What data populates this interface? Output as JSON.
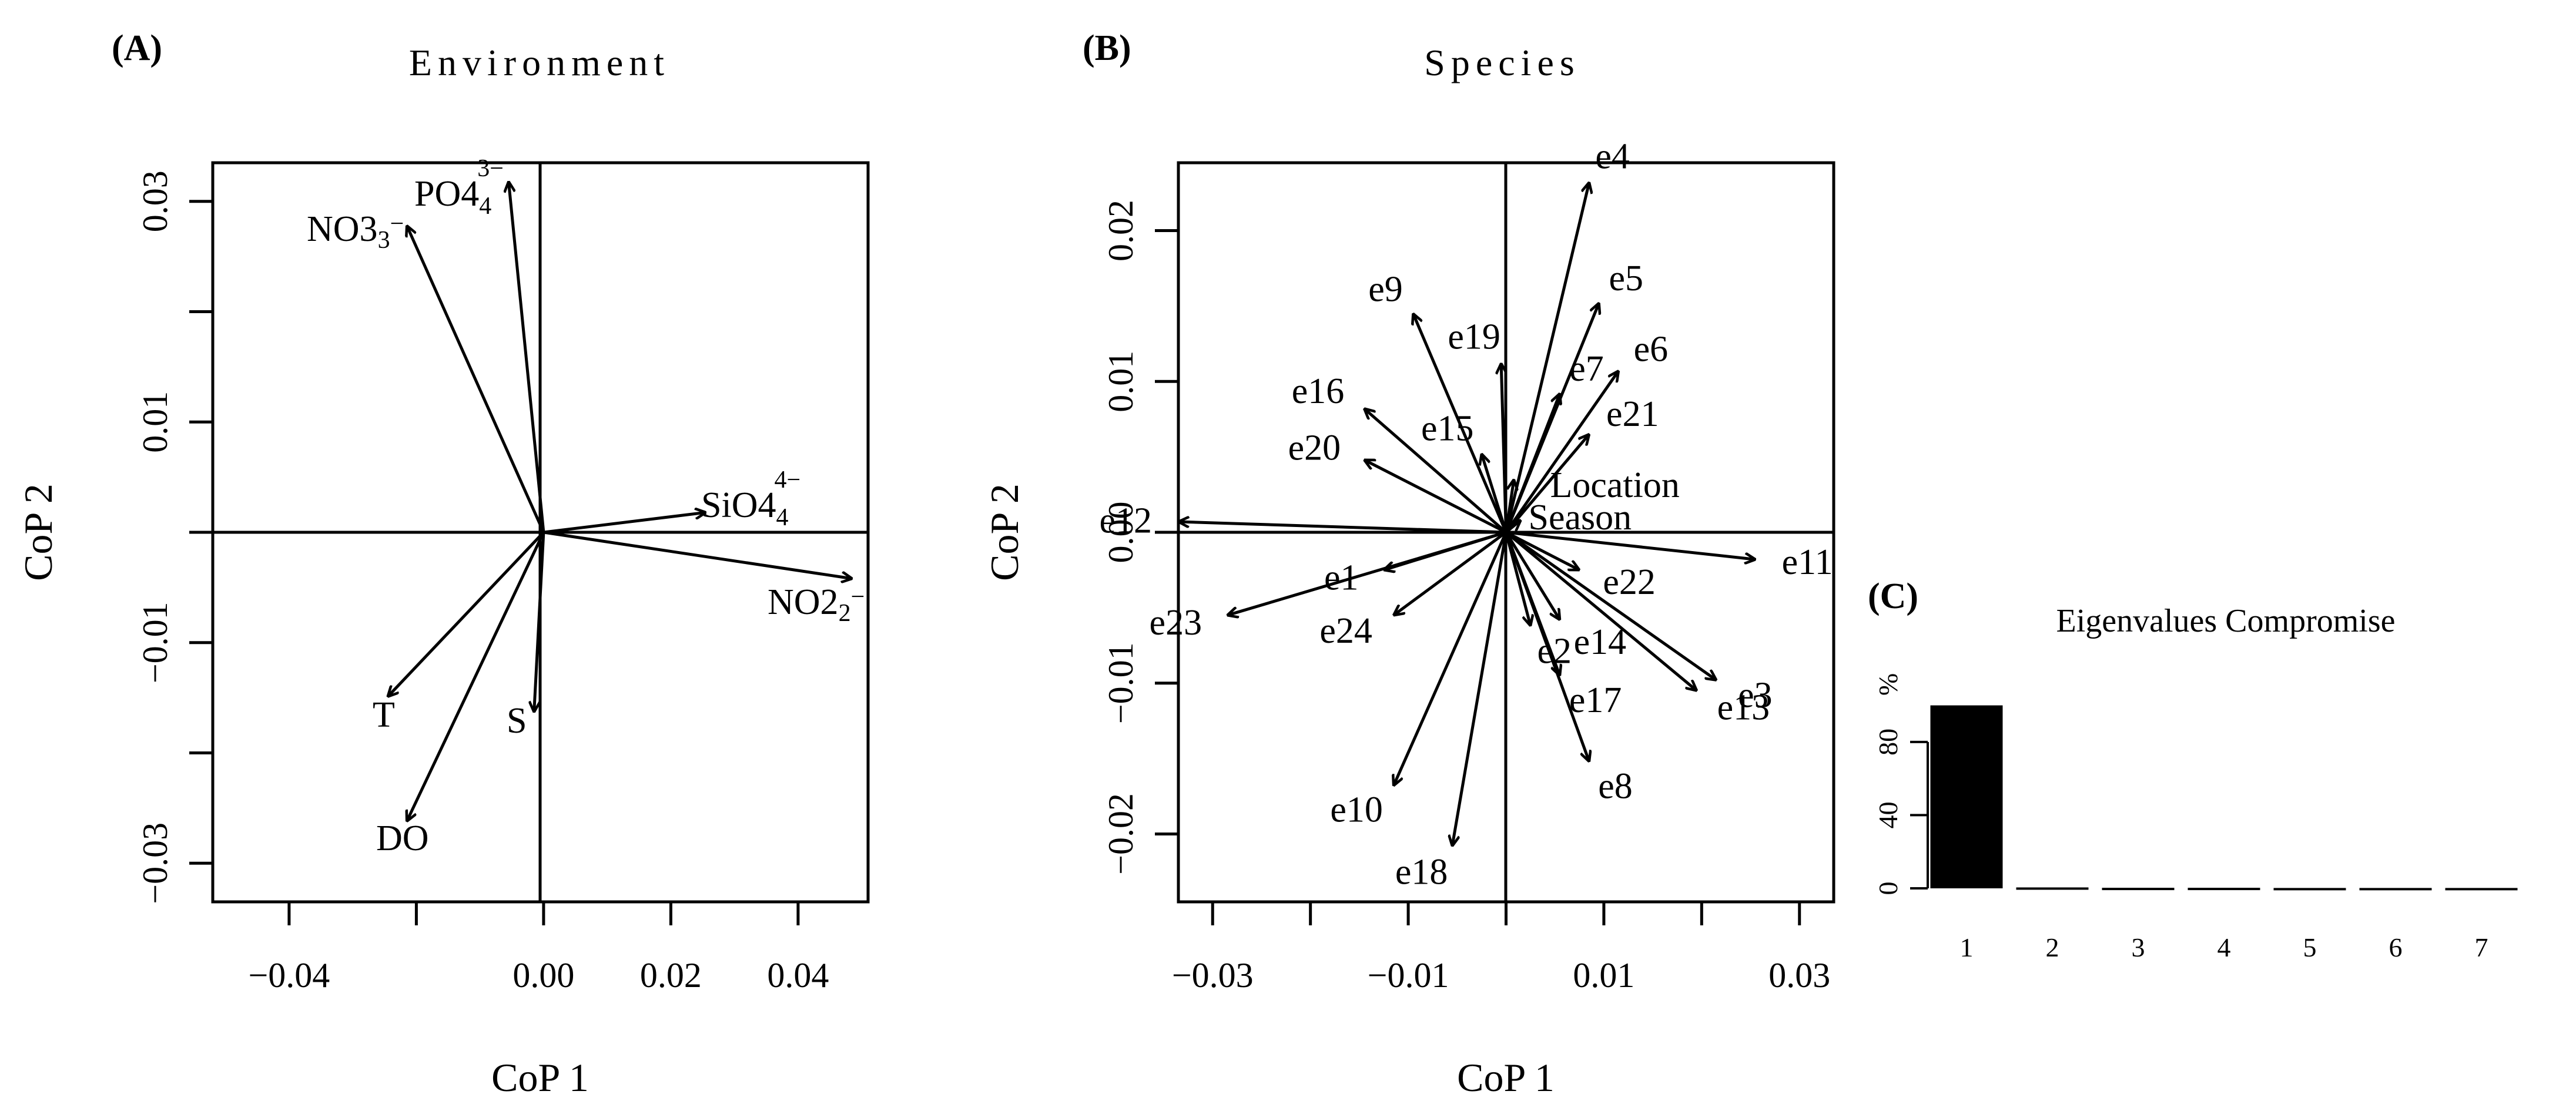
{
  "panels": {
    "A": {
      "letter": "(A)",
      "title": "Environment",
      "xlabel": "CoP 1",
      "ylabel": "CoP 2"
    },
    "B": {
      "letter": "(B)",
      "title": "Species",
      "xlabel": "CoP 1",
      "ylabel": "CoP 2"
    },
    "C": {
      "letter": "(C)",
      "title": "Eigenvalues Compromise",
      "ylabel": "%"
    }
  },
  "chart_data": [
    {
      "type": "scatter",
      "subtype": "biplot-arrows",
      "title": "Environment",
      "xlabel": "CoP 1",
      "ylabel": "CoP 2",
      "xlim": [
        -0.052,
        0.051
      ],
      "ylim": [
        -0.0335,
        0.0335
      ],
      "xticks": [
        -0.04,
        0.0,
        0.02,
        0.04
      ],
      "xtick_labels": [
        "−0.04",
        "0.00",
        "0.02",
        "0.04"
      ],
      "xticks_minor": [
        -0.02
      ],
      "yticks": [
        -0.03,
        -0.01,
        0.01,
        0.03
      ],
      "ytick_labels": [
        "−0.03",
        "−0.01",
        "0.01",
        "0.03"
      ],
      "yticks_minor": [
        -0.02,
        0.0,
        0.02
      ],
      "vectors": [
        {
          "label": "NO3",
          "sub": "3",
          "sup": "−",
          "x": -0.0215,
          "y": 0.0278
        },
        {
          "label": "PO4",
          "sub": "4",
          "sup": "3−",
          "x": -0.0055,
          "y": 0.0318
        },
        {
          "label": "SiO4",
          "sub": "4",
          "sup": "4−",
          "x": 0.0255,
          "y": 0.0018
        },
        {
          "label": "NO2",
          "sub": "2",
          "sup": "−",
          "x": 0.0485,
          "y": -0.0042
        },
        {
          "label": "T",
          "x": -0.0245,
          "y": -0.0149
        },
        {
          "label": "S",
          "x": -0.0015,
          "y": -0.0163
        },
        {
          "label": "DO",
          "x": -0.0215,
          "y": -0.0262
        }
      ]
    },
    {
      "type": "scatter",
      "subtype": "biplot-arrows",
      "title": "Species",
      "xlabel": "CoP 1",
      "ylabel": "CoP 2",
      "xlim": [
        -0.0335,
        0.0335
      ],
      "ylim": [
        -0.0245,
        0.0245
      ],
      "xticks": [
        -0.03,
        -0.01,
        0.01,
        0.03
      ],
      "xtick_labels": [
        "−0.03",
        "−0.01",
        "0.01",
        "0.03"
      ],
      "xticks_minor": [
        -0.02,
        0.0,
        0.02
      ],
      "yticks": [
        -0.02,
        -0.01,
        0.0,
        0.01,
        0.02
      ],
      "ytick_labels": [
        "−0.02",
        "−0.01",
        "0.00",
        "0.01",
        "0.02"
      ],
      "vectors": [
        {
          "label": "e1",
          "x": -0.0125,
          "y": -0.0025
        },
        {
          "label": "e2",
          "x": 0.0025,
          "y": -0.0062
        },
        {
          "label": "e3",
          "x": 0.0215,
          "y": -0.0098
        },
        {
          "label": "e4",
          "x": 0.0085,
          "y": 0.0232
        },
        {
          "label": "e5",
          "x": 0.0095,
          "y": 0.0152
        },
        {
          "label": "e6",
          "x": 0.0115,
          "y": 0.0107
        },
        {
          "label": "e7",
          "x": 0.0055,
          "y": 0.0092
        },
        {
          "label": "e8",
          "x": 0.0085,
          "y": -0.0152
        },
        {
          "label": "e9",
          "x": -0.0095,
          "y": 0.0145
        },
        {
          "label": "e10",
          "x": -0.0115,
          "y": -0.0168
        },
        {
          "label": "e11",
          "x": 0.0255,
          "y": -0.0018
        },
        {
          "label": "e12",
          "x": -0.0335,
          "y": 0.0007
        },
        {
          "label": "e13",
          "x": 0.0195,
          "y": -0.0105
        },
        {
          "label": "e14",
          "x": 0.0055,
          "y": -0.0058
        },
        {
          "label": "e15",
          "x": -0.0025,
          "y": 0.0052
        },
        {
          "label": "e16",
          "x": -0.0145,
          "y": 0.0082
        },
        {
          "label": "e17",
          "x": 0.0055,
          "y": -0.0095
        },
        {
          "label": "e18",
          "x": -0.0055,
          "y": -0.0208
        },
        {
          "label": "e19",
          "x": -0.0005,
          "y": 0.0112
        },
        {
          "label": "e20",
          "x": -0.0145,
          "y": 0.0048
        },
        {
          "label": "e21",
          "x": 0.0085,
          "y": 0.0065
        },
        {
          "label": "e22",
          "x": 0.0075,
          "y": -0.0025
        },
        {
          "label": "e23",
          "x": -0.0285,
          "y": -0.0055
        },
        {
          "label": "e24",
          "x": -0.0115,
          "y": -0.0055
        },
        {
          "label": "Location",
          "x": 0.0008,
          "y": 0.0035
        },
        {
          "label": "Season",
          "x": 0.0015,
          "y": 0.0008
        }
      ]
    },
    {
      "type": "bar",
      "title": "Eigenvalues Compromise",
      "ylabel": "%",
      "categories": [
        "1",
        "2",
        "3",
        "4",
        "5",
        "6",
        "7"
      ],
      "values": [
        100,
        0.5,
        0.3,
        0.3,
        0.2,
        0.2,
        0.2
      ],
      "ylim": [
        0,
        105
      ],
      "yticks": [
        0,
        40,
        80
      ],
      "ytick_labels": [
        "0",
        "40",
        "80"
      ],
      "color": "#000000"
    }
  ]
}
